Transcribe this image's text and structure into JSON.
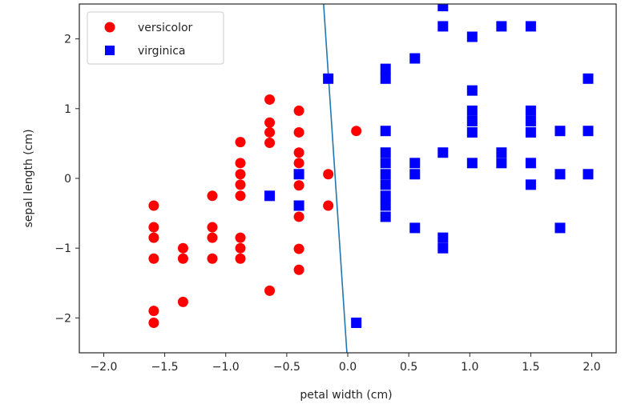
{
  "chart_data": {
    "type": "scatter",
    "title": "",
    "xlabel": "petal width (cm)",
    "ylabel": "sepal length (cm)",
    "xlim": [
      -2.2,
      2.2
    ],
    "ylim": [
      -2.5,
      2.5
    ],
    "xticks": [
      -2.0,
      -1.5,
      -1.0,
      -0.5,
      0.0,
      0.5,
      1.0,
      1.5,
      2.0
    ],
    "xtick_labels": [
      "−2.0",
      "−1.5",
      "−1.0",
      "−0.5",
      "0.0",
      "0.5",
      "1.0",
      "1.5",
      "2.0"
    ],
    "yticks": [
      2,
      1,
      0,
      -1,
      -2
    ],
    "ytick_labels": [
      "2",
      "1",
      "0",
      "−1",
      "−2"
    ],
    "grid": false,
    "legend_position": "upper left",
    "series": [
      {
        "name": "versicolor",
        "marker": "circle",
        "color": "#ff0000",
        "points": [
          [
            -1.59,
            -0.39
          ],
          [
            -1.59,
            -0.7
          ],
          [
            -1.59,
            -0.85
          ],
          [
            -1.59,
            -1.15
          ],
          [
            -1.59,
            -1.9
          ],
          [
            -1.59,
            -2.07
          ],
          [
            -1.35,
            -1.0
          ],
          [
            -1.35,
            -1.15
          ],
          [
            -1.35,
            -1.77
          ],
          [
            -1.11,
            -0.25
          ],
          [
            -1.11,
            -0.7
          ],
          [
            -1.11,
            -0.85
          ],
          [
            -1.11,
            -1.15
          ],
          [
            -0.88,
            0.52
          ],
          [
            -0.88,
            0.22
          ],
          [
            -0.88,
            0.06
          ],
          [
            -0.88,
            -0.09
          ],
          [
            -0.88,
            -0.25
          ],
          [
            -0.88,
            -0.85
          ],
          [
            -0.88,
            -1.0
          ],
          [
            -0.88,
            -1.15
          ],
          [
            -0.64,
            1.13
          ],
          [
            -0.64,
            0.8
          ],
          [
            -0.64,
            0.66
          ],
          [
            -0.64,
            0.51
          ],
          [
            -0.64,
            -1.61
          ],
          [
            -0.4,
            0.97
          ],
          [
            -0.4,
            0.66
          ],
          [
            -0.4,
            0.37
          ],
          [
            -0.4,
            0.22
          ],
          [
            -0.4,
            -0.1
          ],
          [
            -0.4,
            -0.55
          ],
          [
            -0.4,
            -1.01
          ],
          [
            -0.4,
            -1.31
          ],
          [
            -0.16,
            0.06
          ],
          [
            -0.16,
            -0.39
          ],
          [
            0.07,
            0.68
          ]
        ]
      },
      {
        "name": "virginica",
        "marker": "square",
        "color": "#0000ff",
        "points": [
          [
            -0.16,
            1.43
          ],
          [
            -0.64,
            -0.25
          ],
          [
            -0.4,
            0.06
          ],
          [
            -0.4,
            -0.39
          ],
          [
            0.07,
            -2.07
          ],
          [
            0.31,
            1.57
          ],
          [
            0.31,
            1.43
          ],
          [
            0.31,
            0.68
          ],
          [
            0.31,
            0.37
          ],
          [
            0.31,
            0.22
          ],
          [
            0.31,
            0.06
          ],
          [
            0.31,
            -0.09
          ],
          [
            0.31,
            -0.25
          ],
          [
            0.31,
            -0.39
          ],
          [
            0.31,
            -0.55
          ],
          [
            0.55,
            1.72
          ],
          [
            0.55,
            0.22
          ],
          [
            0.55,
            0.06
          ],
          [
            0.55,
            -0.71
          ],
          [
            0.78,
            2.47
          ],
          [
            0.78,
            2.18
          ],
          [
            0.78,
            0.37
          ],
          [
            0.78,
            -0.85
          ],
          [
            0.78,
            -1.0
          ],
          [
            1.02,
            2.03
          ],
          [
            1.02,
            1.26
          ],
          [
            1.02,
            0.97
          ],
          [
            1.02,
            0.82
          ],
          [
            1.02,
            0.66
          ],
          [
            1.02,
            0.22
          ],
          [
            1.26,
            2.18
          ],
          [
            1.26,
            0.37
          ],
          [
            1.26,
            0.22
          ],
          [
            1.5,
            2.18
          ],
          [
            1.5,
            0.97
          ],
          [
            1.5,
            0.82
          ],
          [
            1.5,
            0.66
          ],
          [
            1.5,
            0.22
          ],
          [
            1.5,
            -0.09
          ],
          [
            1.74,
            0.68
          ],
          [
            1.74,
            0.06
          ],
          [
            1.74,
            -0.71
          ],
          [
            1.97,
            1.43
          ],
          [
            1.97,
            0.68
          ],
          [
            1.97,
            0.06
          ]
        ]
      }
    ],
    "lines": [
      {
        "name": "decision-boundary",
        "color": "#1f77b4",
        "points": [
          [
            -0.198,
            2.5
          ],
          [
            -0.007,
            -2.5
          ]
        ]
      }
    ]
  }
}
